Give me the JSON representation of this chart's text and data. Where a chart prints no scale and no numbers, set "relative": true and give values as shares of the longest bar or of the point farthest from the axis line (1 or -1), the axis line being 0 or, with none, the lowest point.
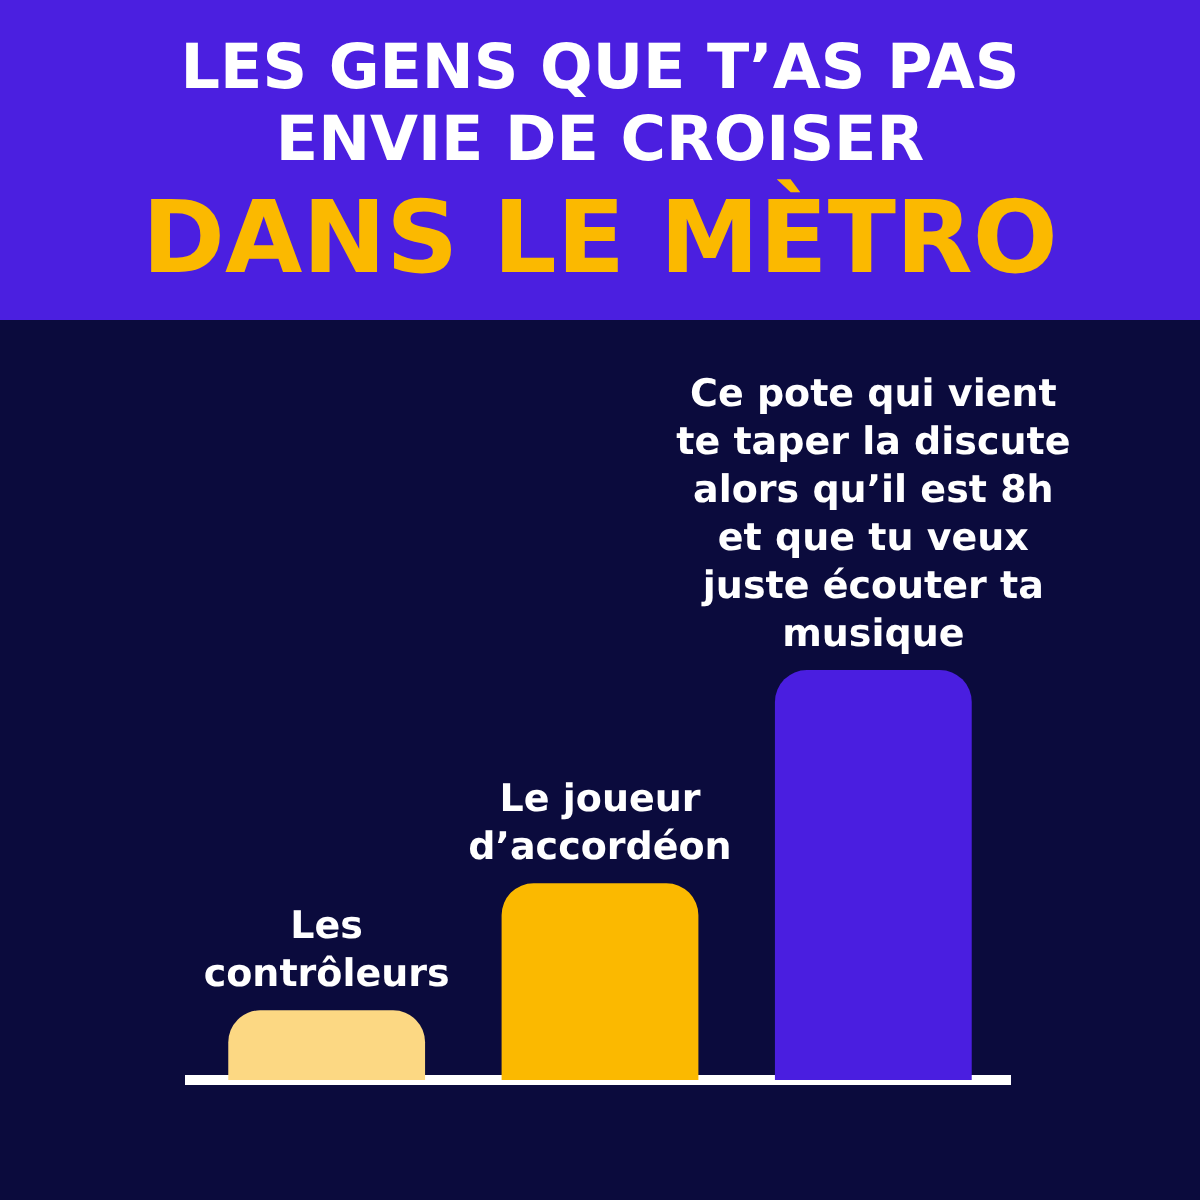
{
  "chart_data": {
    "type": "bar",
    "title": "LES GENS QUE T’AS PAS ENVIE DE CROISER",
    "subtitle": "DANS LE MÈTRO",
    "relative": true,
    "categories": [
      null,
      null,
      null
    ],
    "values": [
      0.17,
      0.48,
      1
    ],
    "colors": [
      "#fcd883",
      "#fbb900",
      "#4a1ee0"
    ],
    "annotations": [
      "Les contrôleurs",
      "Le joueur d’accordéon",
      "Ce pote qui vient te taper la discute alors qu’il est 8h et que tu veux juste écouter ta musique"
    ],
    "grid": false,
    "legend": false
  }
}
